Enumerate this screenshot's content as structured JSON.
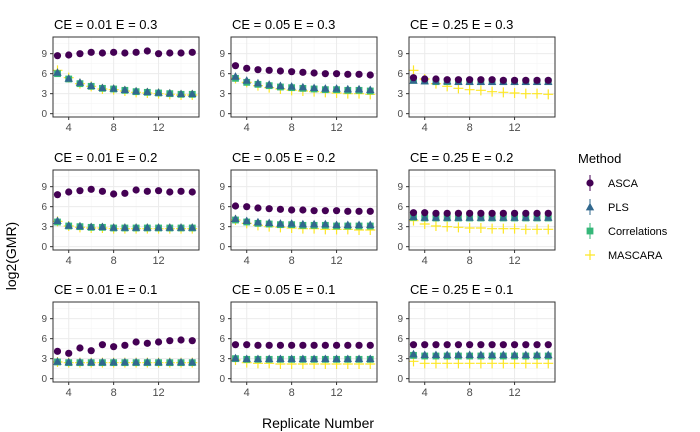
{
  "chart_data": {
    "type": "scatter",
    "xlabel": "Replicate Number",
    "ylabel": "log2(GMR)",
    "xlim": [
      2.6,
      15.6
    ],
    "ylim": [
      -0.5,
      11.5
    ],
    "x_ticks": [
      4,
      8,
      12
    ],
    "y_ticks": [
      0,
      3,
      6,
      9
    ],
    "grid": true,
    "legend_position": "right",
    "legend_title": "Method",
    "colors": {
      "ASCA": "#440154",
      "PLS": "#31688E",
      "Correlations": "#35B779",
      "MASCARA": "#FDE725",
      "panel_border": "#333333",
      "grid_major": "#EBEBEB",
      "grid_minor": "#F5F5F5"
    },
    "markers": {
      "ASCA": "circle",
      "PLS": "triangle",
      "Correlations": "square",
      "MASCARA": "plus"
    },
    "x": [
      3,
      4,
      5,
      6,
      7,
      8,
      9,
      10,
      11,
      12,
      13,
      14,
      15
    ],
    "panels": [
      {
        "title": "CE = 0.01 E = 0.3",
        "series": [
          {
            "name": "ASCA",
            "values": [
              8.7,
              8.8,
              9.0,
              9.2,
              9.1,
              9.2,
              9.1,
              9.2,
              9.4,
              9.0,
              9.1,
              9.1,
              9.2
            ]
          },
          {
            "name": "PLS",
            "values": [
              6.2,
              5.3,
              4.7,
              4.2,
              3.9,
              3.8,
              3.6,
              3.4,
              3.3,
              3.2,
              3.1,
              3.0,
              3.0
            ]
          },
          {
            "name": "Correlations",
            "values": [
              6.0,
              5.2,
              4.5,
              4.1,
              3.8,
              3.7,
              3.5,
              3.3,
              3.2,
              3.1,
              3.0,
              2.9,
              2.9
            ]
          },
          {
            "name": "MASCARA",
            "values": [
              6.5,
              5.4,
              4.5,
              4.1,
              3.7,
              3.6,
              3.4,
              3.2,
              3.1,
              3.0,
              2.9,
              2.8,
              2.8
            ]
          }
        ]
      },
      {
        "title": "CE = 0.05 E = 0.3",
        "series": [
          {
            "name": "ASCA",
            "values": [
              7.2,
              6.8,
              6.6,
              6.5,
              6.4,
              6.3,
              6.2,
              6.1,
              6.0,
              6.0,
              5.9,
              5.9,
              5.8
            ]
          },
          {
            "name": "PLS",
            "values": [
              5.6,
              5.0,
              4.6,
              4.4,
              4.2,
              4.1,
              4.0,
              3.9,
              3.8,
              3.8,
              3.7,
              3.7,
              3.6
            ]
          },
          {
            "name": "Correlations",
            "values": [
              5.3,
              4.7,
              4.4,
              4.2,
              4.0,
              3.9,
              3.8,
              3.7,
              3.6,
              3.6,
              3.5,
              3.5,
              3.4
            ]
          },
          {
            "name": "MASCARA",
            "values": [
              5.3,
              4.7,
              4.2,
              3.9,
              3.7,
              3.5,
              3.4,
              3.3,
              3.2,
              3.1,
              3.0,
              3.0,
              2.9
            ]
          }
        ]
      },
      {
        "title": "CE = 0.25 E = 0.3",
        "series": [
          {
            "name": "ASCA",
            "values": [
              5.4,
              5.2,
              5.2,
              5.1,
              5.1,
              5.1,
              5.1,
              5.1,
              5.0,
              5.0,
              5.0,
              5.0,
              5.0
            ]
          },
          {
            "name": "PLS",
            "values": [
              5.0,
              4.9,
              4.9,
              4.9,
              4.8,
              4.8,
              4.8,
              4.8,
              4.8,
              4.8,
              4.8,
              4.8,
              4.8
            ]
          },
          {
            "name": "Correlations",
            "values": [
              5.0,
              4.9,
              4.8,
              4.8,
              4.8,
              4.8,
              4.8,
              4.8,
              4.8,
              4.8,
              4.8,
              4.8,
              4.8
            ]
          },
          {
            "name": "MASCARA",
            "values": [
              6.5,
              5.2,
              4.5,
              4.1,
              3.8,
              3.6,
              3.5,
              3.3,
              3.2,
              3.1,
              3.0,
              3.0,
              2.9
            ]
          }
        ]
      },
      {
        "title": "CE = 0.01 E = 0.2",
        "series": [
          {
            "name": "ASCA",
            "values": [
              7.8,
              8.2,
              8.4,
              8.6,
              8.3,
              7.9,
              8.0,
              8.5,
              8.3,
              8.4,
              8.2,
              8.3,
              8.2
            ]
          },
          {
            "name": "PLS",
            "values": [
              3.9,
              3.2,
              3.1,
              3.0,
              3.0,
              2.9,
              2.9,
              2.9,
              2.9,
              2.9,
              2.9,
              2.9,
              2.9
            ]
          },
          {
            "name": "Correlations",
            "values": [
              3.7,
              3.1,
              3.0,
              2.9,
              2.9,
              2.8,
              2.8,
              2.8,
              2.8,
              2.8,
              2.8,
              2.8,
              2.8
            ]
          },
          {
            "name": "MASCARA",
            "values": [
              3.8,
              3.1,
              2.9,
              2.8,
              2.8,
              2.7,
              2.7,
              2.7,
              2.7,
              2.7,
              2.7,
              2.7,
              2.7
            ]
          }
        ]
      },
      {
        "title": "CE = 0.05 E = 0.2",
        "series": [
          {
            "name": "ASCA",
            "values": [
              6.1,
              6.0,
              5.8,
              5.7,
              5.6,
              5.5,
              5.5,
              5.4,
              5.4,
              5.4,
              5.3,
              5.3,
              5.3
            ]
          },
          {
            "name": "PLS",
            "values": [
              4.2,
              3.9,
              3.7,
              3.6,
              3.5,
              3.5,
              3.4,
              3.4,
              3.4,
              3.3,
              3.3,
              3.3,
              3.3
            ]
          },
          {
            "name": "Correlations",
            "values": [
              4.0,
              3.7,
              3.5,
              3.4,
              3.3,
              3.3,
              3.2,
              3.2,
              3.2,
              3.1,
              3.1,
              3.1,
              3.1
            ]
          },
          {
            "name": "MASCARA",
            "values": [
              4.0,
              3.5,
              3.2,
              3.0,
              2.9,
              2.8,
              2.7,
              2.7,
              2.6,
              2.6,
              2.6,
              2.5,
              2.5
            ]
          }
        ]
      },
      {
        "title": "CE = 0.25 E = 0.2",
        "series": [
          {
            "name": "ASCA",
            "values": [
              5.1,
              5.1,
              5.0,
              5.0,
              5.0,
              5.0,
              5.0,
              5.0,
              5.0,
              5.0,
              5.0,
              5.0,
              5.0
            ]
          },
          {
            "name": "PLS",
            "values": [
              4.5,
              4.4,
              4.4,
              4.4,
              4.4,
              4.4,
              4.4,
              4.4,
              4.4,
              4.4,
              4.4,
              4.4,
              4.4
            ]
          },
          {
            "name": "Correlations",
            "values": [
              4.4,
              4.3,
              4.3,
              4.3,
              4.3,
              4.3,
              4.3,
              4.3,
              4.3,
              4.3,
              4.3,
              4.3,
              4.3
            ]
          },
          {
            "name": "MASCARA",
            "values": [
              3.9,
              3.4,
              3.1,
              3.0,
              2.9,
              2.8,
              2.8,
              2.7,
              2.7,
              2.7,
              2.6,
              2.6,
              2.6
            ]
          }
        ]
      },
      {
        "title": "CE = 0.01 E = 0.1",
        "series": [
          {
            "name": "ASCA",
            "values": [
              4.1,
              3.8,
              4.6,
              4.2,
              5.1,
              4.8,
              5.0,
              5.5,
              5.3,
              5.5,
              5.7,
              5.8,
              5.7
            ]
          },
          {
            "name": "PLS",
            "values": [
              2.6,
              2.5,
              2.5,
              2.5,
              2.5,
              2.5,
              2.5,
              2.5,
              2.5,
              2.5,
              2.5,
              2.5,
              2.5
            ]
          },
          {
            "name": "Correlations",
            "values": [
              2.5,
              2.4,
              2.4,
              2.4,
              2.4,
              2.4,
              2.4,
              2.4,
              2.4,
              2.4,
              2.4,
              2.4,
              2.4
            ]
          },
          {
            "name": "MASCARA",
            "values": [
              2.5,
              2.4,
              2.4,
              2.4,
              2.4,
              2.4,
              2.4,
              2.4,
              2.4,
              2.4,
              2.4,
              2.4,
              2.4
            ]
          }
        ]
      },
      {
        "title": "CE = 0.05 E = 0.1",
        "series": [
          {
            "name": "ASCA",
            "values": [
              5.1,
              5.1,
              5.0,
              5.0,
              5.0,
              5.0,
              5.0,
              5.0,
              5.0,
              5.0,
              5.0,
              5.0,
              5.0
            ]
          },
          {
            "name": "PLS",
            "values": [
              3.1,
              3.0,
              3.0,
              3.0,
              3.0,
              3.0,
              3.0,
              3.0,
              3.0,
              3.0,
              3.0,
              3.0,
              3.0
            ]
          },
          {
            "name": "Correlations",
            "values": [
              3.0,
              2.9,
              2.9,
              2.9,
              2.9,
              2.9,
              2.9,
              2.9,
              2.9,
              2.9,
              2.9,
              2.9,
              2.9
            ]
          },
          {
            "name": "MASCARA",
            "values": [
              2.8,
              2.4,
              2.3,
              2.3,
              2.2,
              2.2,
              2.2,
              2.2,
              2.2,
              2.2,
              2.2,
              2.2,
              2.2
            ]
          }
        ]
      },
      {
        "title": "CE = 0.25 E = 0.1",
        "series": [
          {
            "name": "ASCA",
            "values": [
              5.1,
              5.1,
              5.1,
              5.1,
              5.1,
              5.1,
              5.1,
              5.1,
              5.1,
              5.1,
              5.1,
              5.1,
              5.1
            ]
          },
          {
            "name": "PLS",
            "values": [
              3.7,
              3.6,
              3.6,
              3.6,
              3.6,
              3.6,
              3.6,
              3.6,
              3.6,
              3.6,
              3.6,
              3.6,
              3.6
            ]
          },
          {
            "name": "Correlations",
            "values": [
              3.5,
              3.4,
              3.4,
              3.4,
              3.4,
              3.4,
              3.4,
              3.4,
              3.4,
              3.4,
              3.4,
              3.4,
              3.4
            ]
          },
          {
            "name": "MASCARA",
            "values": [
              2.6,
              2.3,
              2.3,
              2.3,
              2.3,
              2.3,
              2.3,
              2.3,
              2.3,
              2.3,
              2.3,
              2.3,
              2.3
            ]
          }
        ]
      }
    ]
  }
}
